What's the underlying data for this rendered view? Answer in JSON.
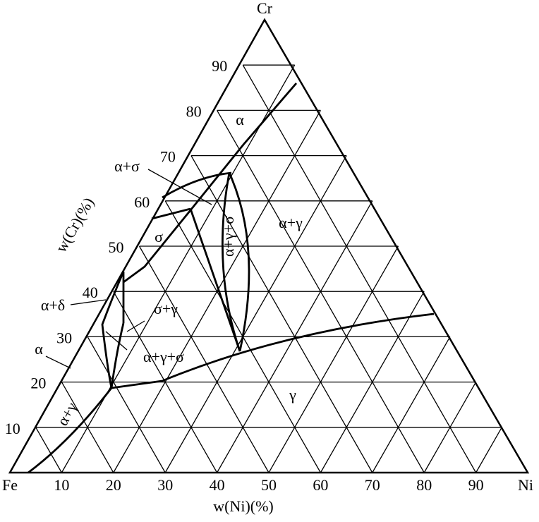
{
  "vertices": {
    "top": "Cr",
    "left": "Fe",
    "right": "Ni"
  },
  "axes": {
    "left": {
      "label": "w(Cr)(%)",
      "ticks": [
        10,
        20,
        30,
        40,
        50,
        60,
        70,
        80,
        90
      ]
    },
    "bottom": {
      "label": "w(Ni)(%)",
      "ticks": [
        10,
        20,
        30,
        40,
        50,
        60,
        70,
        80,
        90
      ]
    }
  },
  "regions": [
    "α",
    "α+σ",
    "σ",
    "α+γ+σ",
    "α+γ",
    "α+δ",
    "σ+γ",
    "α+γ+σ",
    "α",
    "α+γ",
    "γ"
  ]
}
